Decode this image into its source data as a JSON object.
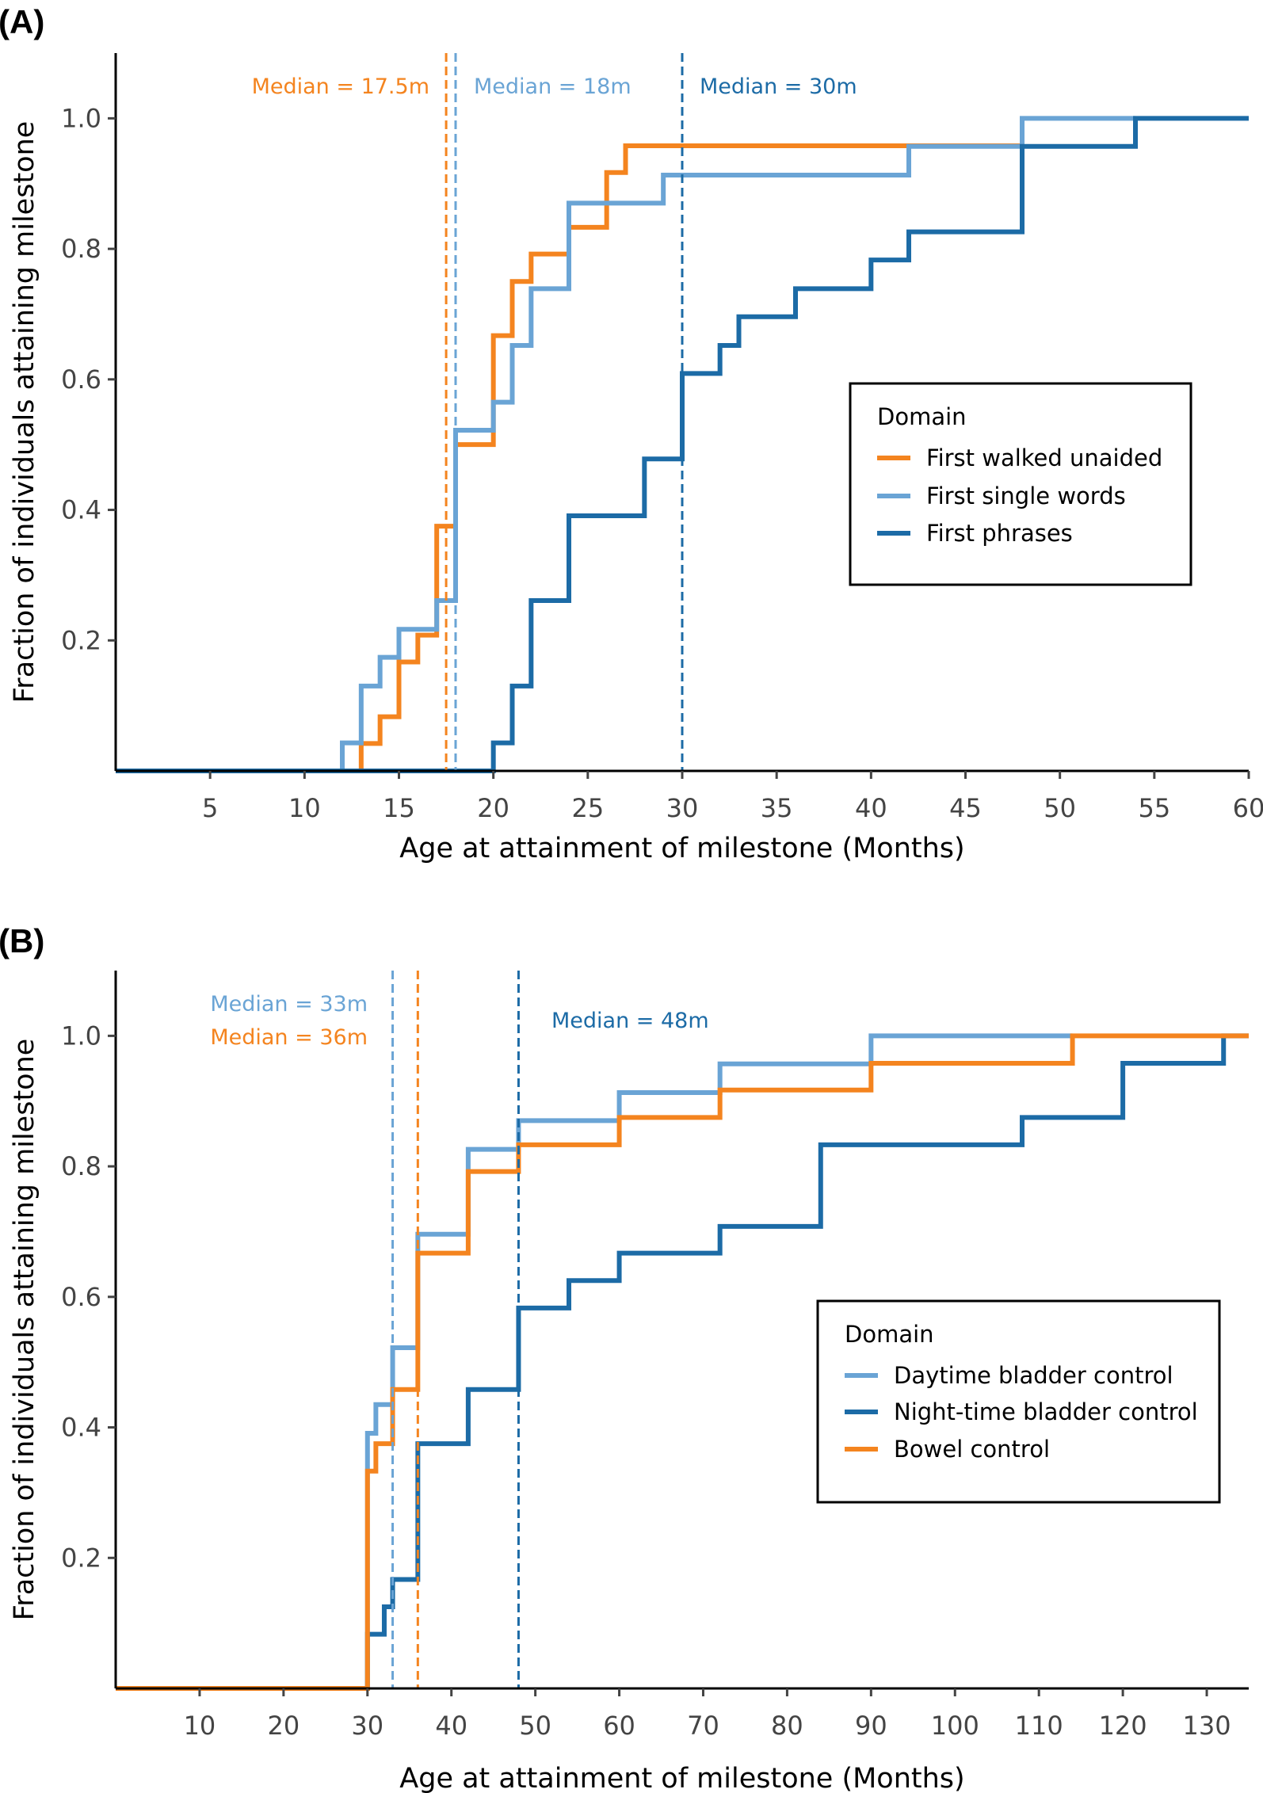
{
  "chart_data": [
    {
      "panel_label": "(A)",
      "type": "line",
      "step": true,
      "xlabel": "Age at attainment of milestone (Months)",
      "ylabel": "Fraction of individuals attaining milestone",
      "xlim": [
        0,
        60
      ],
      "ylim": [
        0,
        1.1
      ],
      "x_ticks": [
        5,
        10,
        15,
        20,
        25,
        30,
        35,
        40,
        45,
        50,
        55,
        60
      ],
      "y_ticks": [
        0.2,
        0.4,
        0.6,
        0.8,
        1.0
      ],
      "y_tick_labels": [
        "0.2",
        "0.4",
        "0.6",
        "0.8",
        "1.0"
      ],
      "grid": false,
      "legend": {
        "title": "Domain",
        "position": "right"
      },
      "series": [
        {
          "name": "First walked unaided",
          "color": "#f4841f",
          "x": [
            0,
            13,
            13,
            14,
            15,
            16,
            17,
            18,
            20,
            21,
            22,
            24,
            26,
            27,
            48
          ],
          "y": [
            0,
            0,
            0.042,
            0.083,
            0.167,
            0.208,
            0.375,
            0.5,
            0.667,
            0.75,
            0.792,
            0.833,
            0.917,
            0.958,
            1.0
          ],
          "median_label": "Median = 17.5m",
          "median_x": 17.5
        },
        {
          "name": "First single words",
          "color": "#6aa4d5",
          "x": [
            0,
            12,
            13,
            14,
            15,
            17,
            18,
            20,
            21,
            22,
            24,
            29,
            42,
            48,
            54
          ],
          "y": [
            0,
            0.043,
            0.13,
            0.174,
            0.217,
            0.261,
            0.522,
            0.565,
            0.652,
            0.739,
            0.87,
            0.913,
            0.957,
            1.0,
            1.0
          ],
          "median_label": "Median = 18m",
          "median_x": 18
        },
        {
          "name": "First phrases",
          "color": "#1c6ba6",
          "x": [
            0,
            20,
            21,
            22,
            24,
            28,
            30,
            32,
            33,
            36,
            40,
            42,
            48,
            54,
            60
          ],
          "y": [
            0,
            0.043,
            0.13,
            0.261,
            0.391,
            0.478,
            0.609,
            0.652,
            0.696,
            0.739,
            0.783,
            0.826,
            0.957,
            1.0,
            1.0
          ],
          "median_label": "Median = 30m",
          "median_x": 30
        }
      ]
    },
    {
      "panel_label": "(B)",
      "type": "line",
      "step": true,
      "xlabel": "Age at attainment of milestone (Months)",
      "ylabel": "Fraction of individuals attaining milestone",
      "xlim": [
        0,
        135
      ],
      "ylim": [
        0,
        1.1
      ],
      "x_ticks": [
        10,
        20,
        30,
        40,
        50,
        60,
        70,
        80,
        90,
        100,
        110,
        120,
        130
      ],
      "y_ticks": [
        0.2,
        0.4,
        0.6,
        0.8,
        1.0
      ],
      "y_tick_labels": [
        "0.2",
        "0.4",
        "0.6",
        "0.8",
        "1.0"
      ],
      "grid": false,
      "legend": {
        "title": "Domain",
        "position": "right"
      },
      "series": [
        {
          "name": "Daytime bladder control",
          "color": "#6aa4d5",
          "x": [
            0,
            30,
            31,
            32,
            33,
            36,
            42,
            48,
            60,
            72,
            90,
            114
          ],
          "y": [
            0,
            0.391,
            0.435,
            0.435,
            0.522,
            0.696,
            0.826,
            0.87,
            0.913,
            0.957,
            1.0,
            1.0
          ],
          "median_label": "Median = 33m",
          "median_x": 33
        },
        {
          "name": "Night-time bladder control",
          "color": "#1c6ba6",
          "x": [
            0,
            30,
            32,
            33,
            36,
            42,
            48,
            54,
            60,
            72,
            84,
            108,
            120,
            132,
            135
          ],
          "y": [
            0,
            0.083,
            0.125,
            0.167,
            0.375,
            0.458,
            0.583,
            0.625,
            0.667,
            0.708,
            0.833,
            0.875,
            0.958,
            1.0,
            1.0
          ],
          "median_label": "Median = 48m",
          "median_x": 48
        },
        {
          "name": "Bowel control",
          "color": "#f4841f",
          "x": [
            0,
            30,
            31,
            33,
            36,
            42,
            48,
            60,
            72,
            90,
            114,
            135
          ],
          "y": [
            0,
            0.333,
            0.375,
            0.458,
            0.667,
            0.792,
            0.833,
            0.875,
            0.917,
            0.958,
            1.0,
            1.0
          ],
          "median_label": "Median = 36m",
          "median_x": 36
        }
      ]
    }
  ]
}
